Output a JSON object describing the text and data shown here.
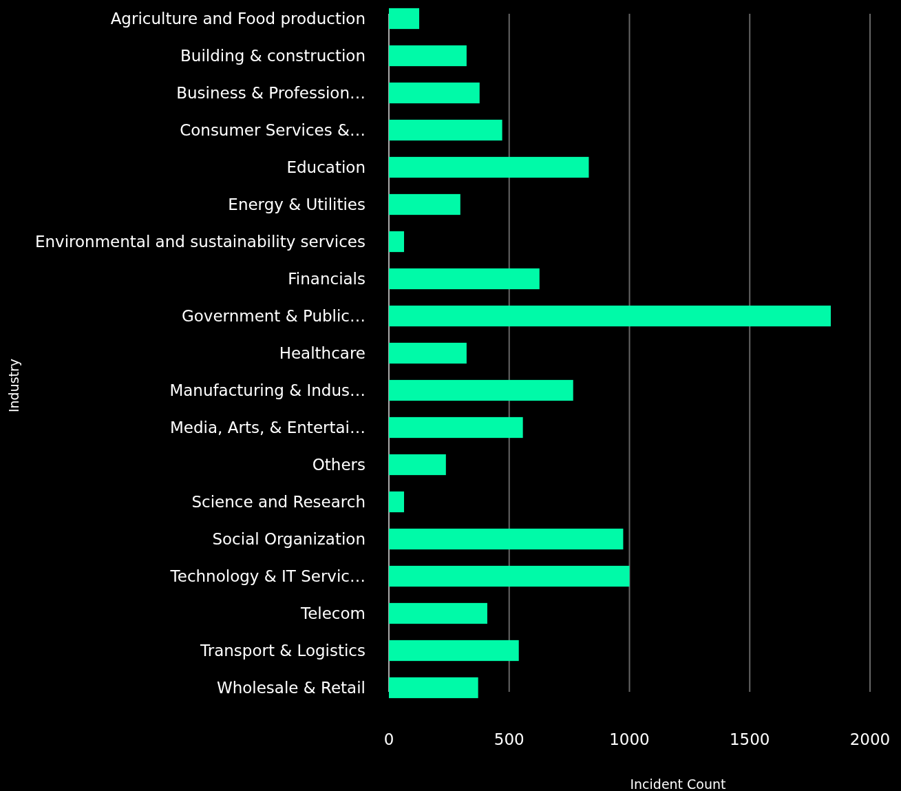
{
  "chart_data": {
    "type": "bar",
    "orientation": "horizontal",
    "xlabel": "Incident Count",
    "ylabel": "Industry",
    "categories": [
      "Agriculture and Food production",
      "Building & construction",
      "Business & Profession…",
      "Consumer Services &…",
      "Education",
      "Energy & Utilities",
      "Environmental and sustainability services",
      "Financials",
      "Government & Public…",
      "Healthcare",
      "Manufacturing & Indus…",
      "Media, Arts, & Entertai…",
      "Others",
      "Science and Research",
      "Social Organization",
      "Technology & IT Servic…",
      "Telecom",
      "Transport & Logistics",
      "Wholesale & Retail"
    ],
    "values": [
      126,
      323,
      377,
      471,
      831,
      297,
      63,
      626,
      1837,
      323,
      766,
      557,
      237,
      63,
      974,
      1000,
      409,
      540,
      371
    ],
    "color": "#00faa8",
    "xlim": [
      0,
      2000
    ],
    "xticks": [
      0,
      500,
      1000,
      1500,
      2000
    ],
    "grid": "x"
  }
}
